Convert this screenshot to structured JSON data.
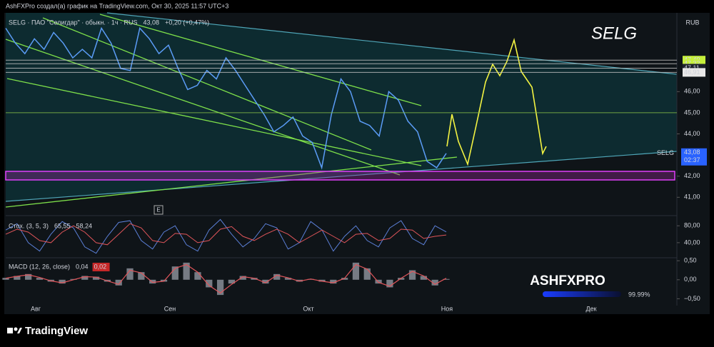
{
  "header": "AshFXPro создал(а) график на TradingView.com, Окт 30, 2025 11:57 UTC+3",
  "watermark": "SELG",
  "currency": "RUB",
  "event_marker": "E",
  "footer": "TradingView",
  "logo": {
    "text": "ASHFXPRO",
    "percent": "99.99%"
  },
  "chart_data": [
    {
      "type": "line",
      "legend": "SELG · ПАО \"Селигдар\" · обыкн. · 1ч · RUS",
      "change": "+0,20 (+0,47%)",
      "color": "#5b9cf6",
      "x_labels": [
        "Авг",
        "Сен",
        "Окт",
        "Ноя",
        "Дек"
      ],
      "values": [
        49.0,
        48.3,
        47.8,
        48.5,
        48.0,
        48.8,
        48.3,
        47.6,
        48.0,
        47.6,
        49.0,
        48.3,
        47.1,
        47.0,
        49.0,
        48.5,
        47.8,
        48.2,
        47.1,
        46.1,
        46.3,
        47.0,
        46.6,
        47.6,
        47.0,
        46.3,
        45.6,
        44.9,
        44.1,
        44.4,
        44.8,
        43.9,
        43.6,
        42.4,
        44.9,
        46.6,
        46.0,
        44.6,
        44.4,
        43.9,
        46.0,
        45.6,
        44.6,
        44.1,
        42.7,
        42.4,
        43.08
      ],
      "ylim": [
        40.2,
        49.66
      ],
      "yticks": [
        {
          "value": 46,
          "label": "46,00"
        },
        {
          "value": 44,
          "label": "44,00"
        },
        {
          "value": 42,
          "label": "42,00"
        },
        {
          "value": 41,
          "label": "41,00"
        }
      ],
      "levels": [
        {
          "value": 47.49,
          "label": "47,49",
          "color": "#c8c8c8",
          "bg": "#c6f03c"
        },
        {
          "value": 47.32,
          "label": "47,32",
          "color": "#c8c8c8",
          "bg": "#c6f03c"
        },
        {
          "value": 47.11,
          "label": "47,11",
          "color": "#c8c8c8",
          "bg": "#1e222d"
        },
        {
          "value": 46.91,
          "label": "46,91",
          "color": "#c8c8c8",
          "bg": "#e8e8e8"
        },
        {
          "value": 45,
          "label": "45,00",
          "color": "#8bc34a"
        }
      ],
      "price_tag": {
        "name": "SELG",
        "value": 43.08,
        "label": "43,08",
        "timer": "02:37"
      }
    },
    {
      "type": "line",
      "legend": "Стох. (3, 5, 3)",
      "ylim": [
        6,
        99
      ],
      "yticks": [
        {
          "value": 80,
          "label": "80,00"
        },
        {
          "value": 40,
          "label": "40,00"
        }
      ],
      "series": [
        {
          "color": "#5b7fd6",
          "value_label": "65,55",
          "values": [
            70,
            85,
            40,
            20,
            60,
            90,
            75,
            30,
            15,
            55,
            88,
            92,
            45,
            25,
            65,
            80,
            35,
            20,
            70,
            95,
            60,
            30,
            50,
            85,
            75,
            25,
            40,
            90,
            70,
            20,
            55,
            80,
            45,
            30,
            75,
            92,
            50,
            35,
            80,
            65.55
          ]
        },
        {
          "color": "#e0555a",
          "value_label": "58,24",
          "values": [
            60,
            72,
            65,
            45,
            40,
            65,
            80,
            65,
            40,
            35,
            60,
            85,
            75,
            45,
            40,
            62,
            60,
            40,
            45,
            72,
            78,
            55,
            45,
            60,
            72,
            60,
            40,
            55,
            70,
            55,
            40,
            60,
            62,
            45,
            50,
            72,
            70,
            50,
            55,
            58.24
          ]
        }
      ]
    },
    {
      "type": "bar",
      "legend": "MACD (12, 26, close)",
      "ylim": [
        -0.68,
        0.56
      ],
      "yticks": [
        {
          "value": 0.5,
          "label": "0,50"
        },
        {
          "value": 0,
          "label": "0,00"
        },
        {
          "value": -0.5,
          "label": "−0,50"
        }
      ],
      "color": "#9a9ea8",
      "values": [
        0.05,
        0.1,
        0.15,
        0.05,
        -0.05,
        -0.1,
        0.02,
        0.1,
        0.08,
        -0.05,
        -0.15,
        0.3,
        0.2,
        -0.1,
        -0.05,
        0.35,
        0.45,
        0.2,
        -0.2,
        -0.4,
        -0.1,
        0.1,
        0.05,
        -0.1,
        0.15,
        0.05,
        -0.05,
        0.02,
        -0.05,
        -0.1,
        0.05,
        0.45,
        0.3,
        -0.1,
        -0.2,
        0.05,
        0.25,
        0.1,
        -0.15,
        0.02
      ],
      "value_label": "0,02",
      "line": {
        "color": "#e0555a",
        "value_label": "0,04",
        "values": [
          0.04,
          0.09,
          0.13,
          0.06,
          -0.03,
          -0.08,
          0.0,
          0.08,
          0.07,
          -0.03,
          -0.12,
          0.25,
          0.18,
          -0.07,
          -0.04,
          0.3,
          0.4,
          0.2,
          -0.15,
          -0.35,
          -0.12,
          0.08,
          0.04,
          -0.08,
          0.12,
          0.05,
          -0.04,
          0.02,
          -0.04,
          -0.08,
          0.04,
          0.4,
          0.28,
          -0.07,
          -0.17,
          0.04,
          0.22,
          0.1,
          -0.12,
          0.04
        ]
      }
    }
  ]
}
